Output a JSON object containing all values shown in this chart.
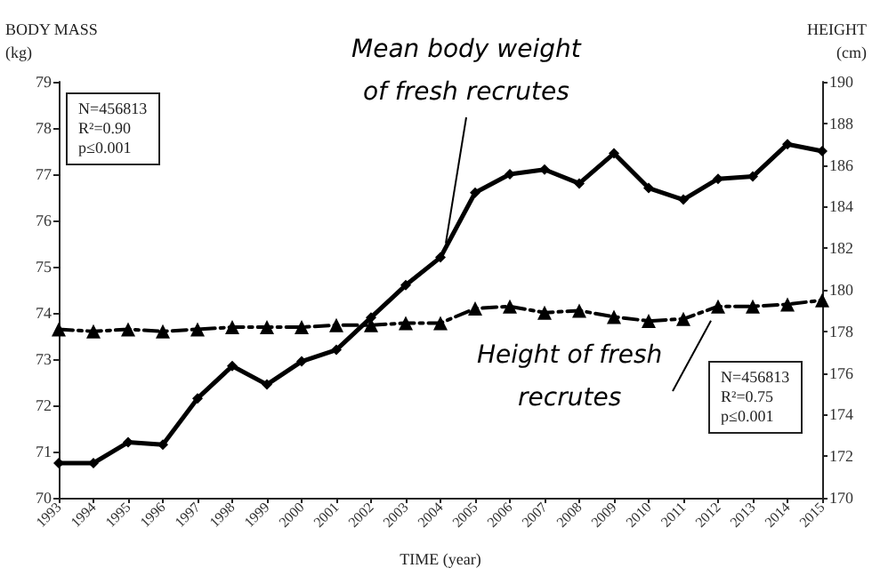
{
  "chart_data": {
    "type": "line",
    "xlabel": "TIME (year)",
    "ylabel": "BODY MASS\n(kg)",
    "y2label": "HEIGHT\n(cm)",
    "categories": [
      "1993",
      "1994",
      "1995",
      "1996",
      "1997",
      "1998",
      "1999",
      "2000",
      "2001",
      "2002",
      "2003",
      "2004",
      "2005",
      "2006",
      "2007",
      "2008",
      "2009",
      "2010",
      "2011",
      "2012",
      "2013",
      "2014",
      "2015"
    ],
    "series": [
      {
        "name": "Mean body weight of fresh recrutes",
        "color": "#000000",
        "marker": "diamond",
        "line_style": "solid",
        "values": [
          70.75,
          70.75,
          71.2,
          71.15,
          72.15,
          72.85,
          72.45,
          72.95,
          73.2,
          73.9,
          74.6,
          75.2,
          76.6,
          77.0,
          77.1,
          76.8,
          77.45,
          76.7,
          76.45,
          76.9,
          76.95,
          77.65,
          77.5
        ]
      },
      {
        "name": "Height of fresh recrutes",
        "color": "#000000",
        "marker": "triangle",
        "line_style": "dashed",
        "axis": "y2",
        "values": [
          178.1,
          178.0,
          178.1,
          178.0,
          178.1,
          178.2,
          178.2,
          178.2,
          178.3,
          178.3,
          178.4,
          178.4,
          179.1,
          179.2,
          178.9,
          179.0,
          178.7,
          178.5,
          178.6,
          179.2,
          179.2,
          179.3,
          179.5
        ]
      }
    ],
    "ylim": [
      70,
      79
    ],
    "yticks": [
      70,
      71,
      72,
      73,
      74,
      75,
      76,
      77,
      78,
      79
    ],
    "y2lim": [
      170,
      190
    ],
    "y2ticks": [
      170,
      172,
      174,
      176,
      178,
      180,
      182,
      184,
      186,
      188,
      190
    ],
    "annotations": [
      "N=456813\nR²=0.90\np≤0.001",
      "N=456813\nR²=0.75\np≤0.001"
    ],
    "grid": false,
    "legend": false
  }
}
